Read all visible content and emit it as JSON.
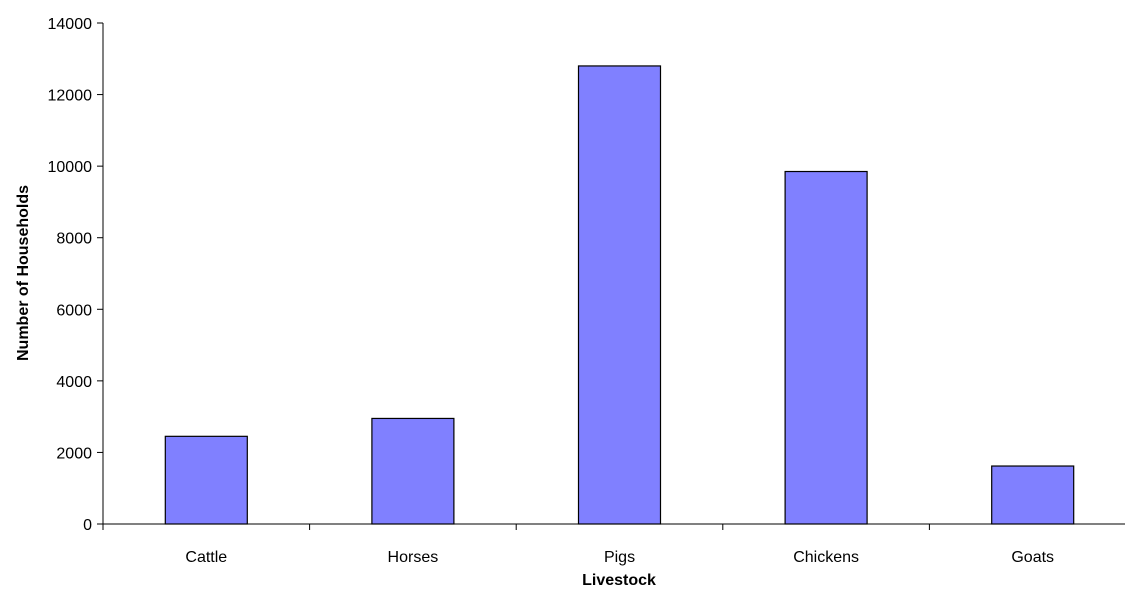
{
  "chart_data": {
    "type": "bar",
    "title": "",
    "xlabel": "Livestock",
    "ylabel": "Number of Households",
    "categories": [
      "Cattle",
      "Horses",
      "Pigs",
      "Chickens",
      "Goats"
    ],
    "values": [
      2450,
      2950,
      12800,
      9850,
      1620
    ],
    "ylim": [
      0,
      14000
    ],
    "yticks": [
      0,
      2000,
      4000,
      6000,
      8000,
      10000,
      12000,
      14000
    ],
    "grid": false,
    "legend": "none",
    "bar_color": "#8080FF"
  }
}
